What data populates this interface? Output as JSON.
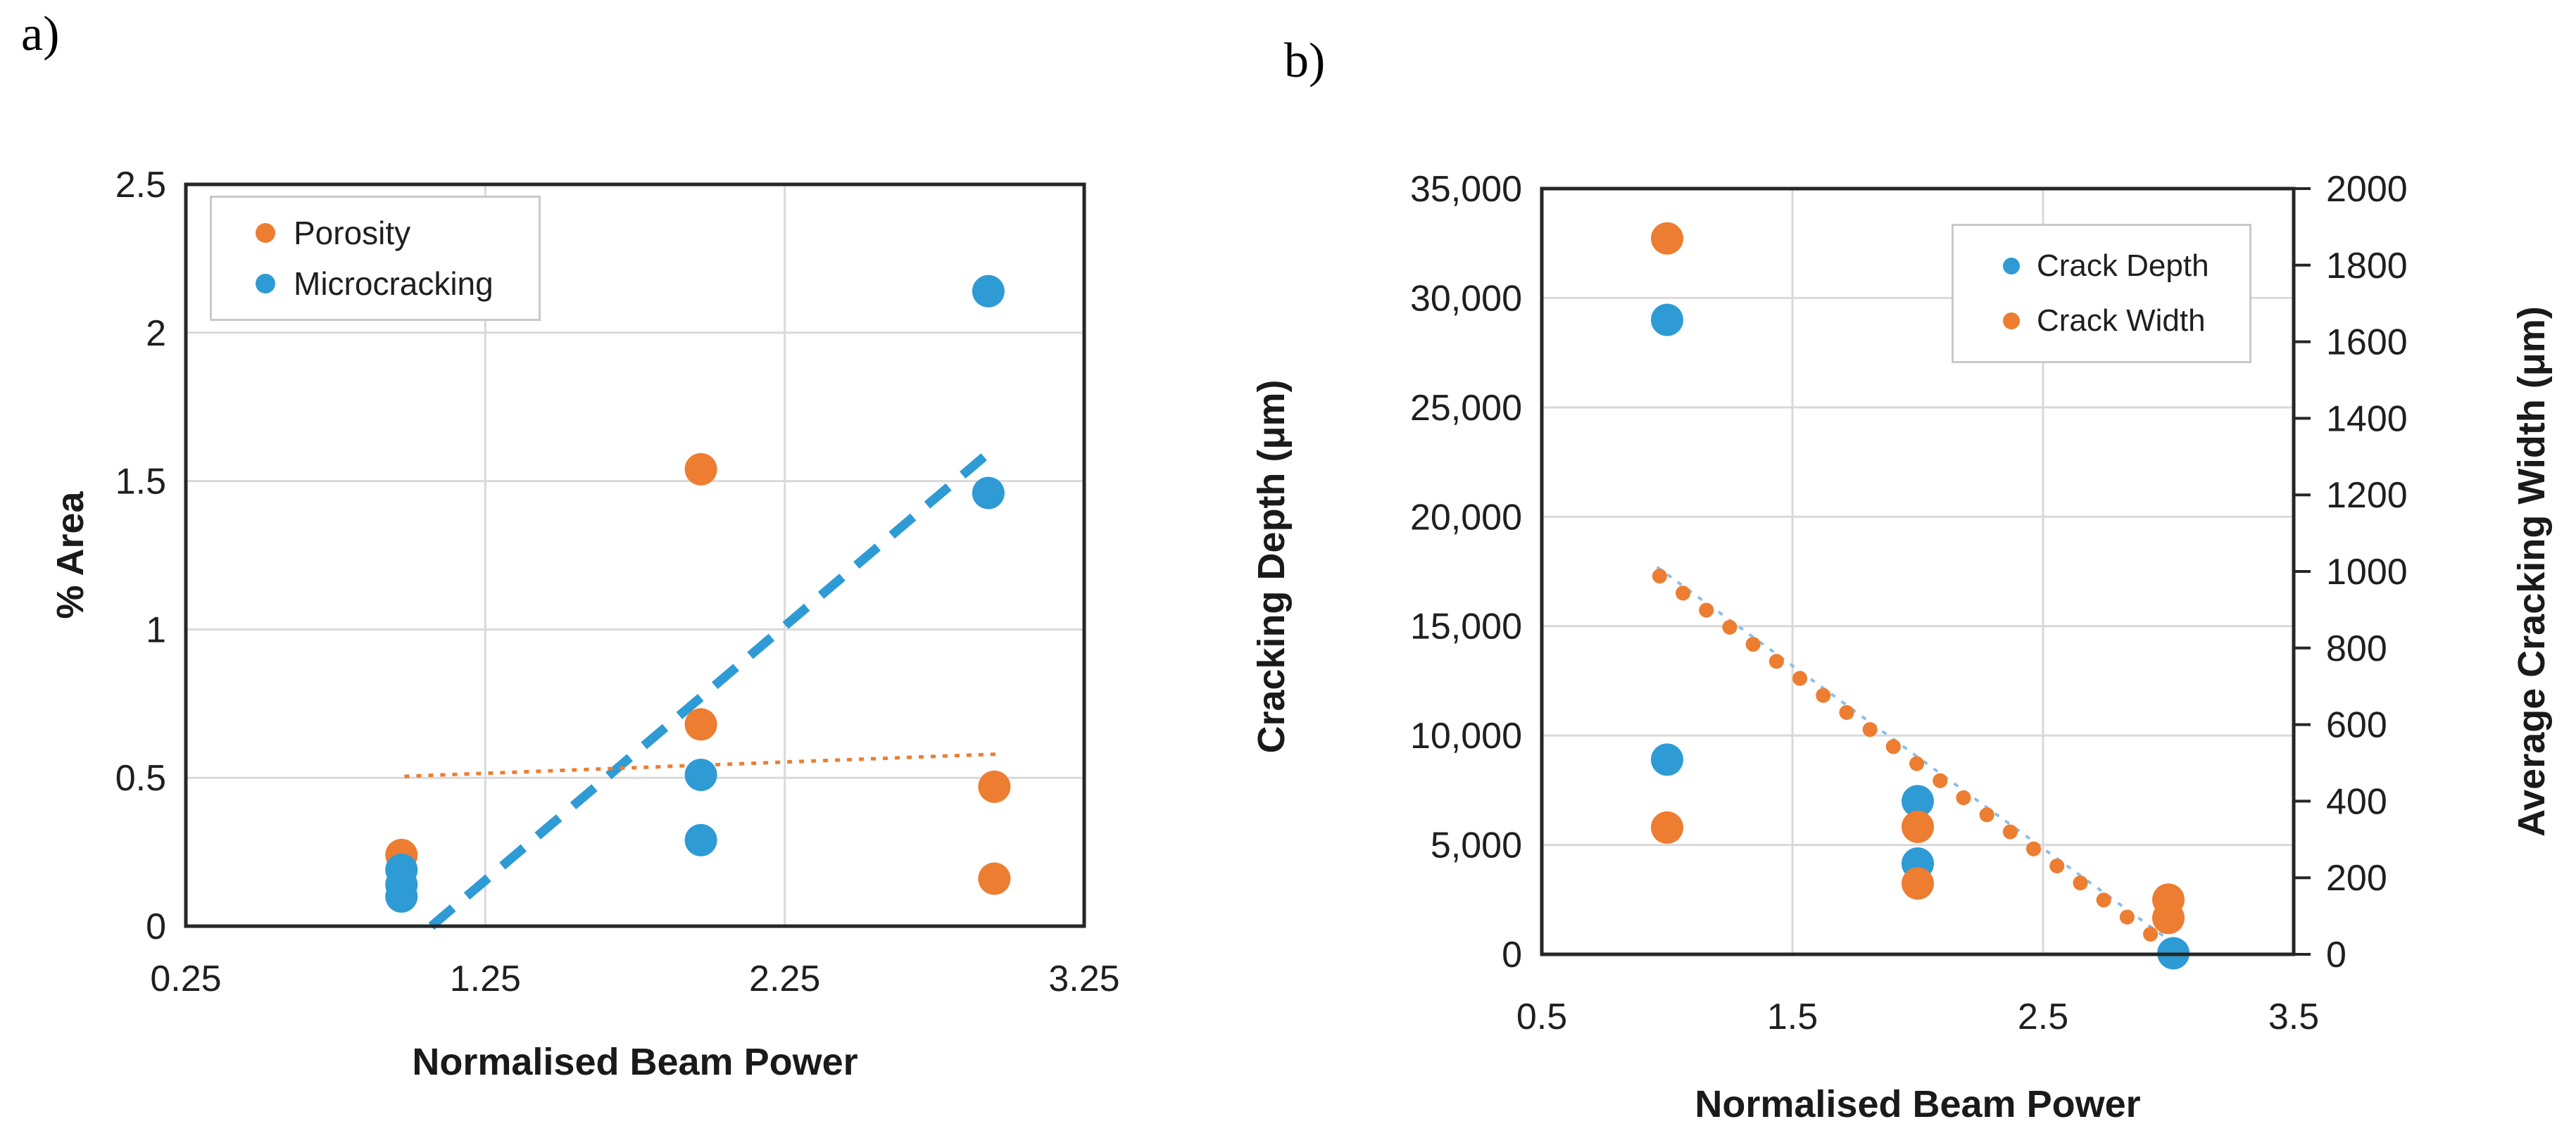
{
  "figure": {
    "background": "#FFFFFF",
    "grid_color": "#D9D9D9",
    "axis_color": "#262626",
    "tick_label_color": "#1F1F1F"
  },
  "chart_data": [
    {
      "panel_label": "a)",
      "type": "scatter",
      "xlabel": "Normalised Beam Power",
      "ylabel": "% Area",
      "xlim": [
        0.25,
        3.25
      ],
      "xticks": [
        0.25,
        1.25,
        2.25,
        3.25
      ],
      "xtick_labels": [
        "0.25",
        "1.25",
        "2.25",
        "3.25"
      ],
      "ylim": [
        0,
        2.5
      ],
      "yticks": [
        0,
        0.5,
        1,
        1.5,
        2,
        2.5
      ],
      "ytick_labels": [
        "0",
        "0.5",
        "1",
        "1.5",
        "2",
        "2.5"
      ],
      "grid": true,
      "legend_position": "top-left-inside",
      "series": [
        {
          "name": "Porosity",
          "color": "#ED7D31",
          "marker": "circle",
          "points": [
            [
              0.97,
              0.24
            ],
            [
              1.97,
              1.54
            ],
            [
              1.97,
              0.68
            ],
            [
              2.95,
              0.47
            ],
            [
              2.95,
              0.16
            ]
          ]
        },
        {
          "name": "Microcracking",
          "color": "#2E9BD5",
          "marker": "circle",
          "points": [
            [
              0.97,
              0.19
            ],
            [
              0.97,
              0.14
            ],
            [
              0.97,
              0.1
            ],
            [
              1.97,
              0.51
            ],
            [
              1.97,
              0.29
            ],
            [
              2.93,
              2.14
            ],
            [
              2.93,
              1.46
            ]
          ]
        }
      ],
      "trendlines": [
        {
          "name": "Microcracking trend",
          "color": "#2E9BD5",
          "style": "dashed",
          "x1": 1.07,
          "y1": 0,
          "x2": 2.96,
          "y2": 1.62
        },
        {
          "name": "Porosity trend",
          "color": "#ED7D31",
          "style": "dotted",
          "x1": 0.98,
          "y1": 0.505,
          "x2": 2.96,
          "y2": 0.58
        }
      ]
    },
    {
      "panel_label": "b)",
      "type": "scatter",
      "xlabel": "Normalised Beam Power",
      "ylabel_left": "Cracking Depth (μm)",
      "ylabel_right": "Average Cracking Width (μm)",
      "xlim": [
        0.5,
        3.5
      ],
      "xticks": [
        0.5,
        1.5,
        2.5,
        3.5
      ],
      "xtick_labels": [
        "0.5",
        "1.5",
        "2.5",
        "3.5"
      ],
      "ylim_left": [
        0,
        35000
      ],
      "yticks_left": [
        0,
        5000,
        10000,
        15000,
        20000,
        25000,
        30000,
        35000
      ],
      "ytick_labels_left": [
        "0",
        "5,000",
        "10,000",
        "15,000",
        "20,000",
        "25,000",
        "30,000",
        "35,000"
      ],
      "ylim_right": [
        0,
        2000
      ],
      "yticks_right": [
        0,
        200,
        400,
        600,
        800,
        1000,
        1200,
        1400,
        1600,
        1800,
        2000
      ],
      "ytick_labels_right": [
        "0",
        "200",
        "400",
        "600",
        "800",
        "1000",
        "1200",
        "1400",
        "1600",
        "1800",
        "2000"
      ],
      "grid": true,
      "legend_position": "top-right-inside",
      "series": [
        {
          "name": "Crack Depth",
          "axis": "left",
          "color": "#2E9BD5",
          "marker": "circle",
          "points": [
            [
              1.0,
              29000
            ],
            [
              1.0,
              8900
            ],
            [
              2.0,
              7000
            ],
            [
              2.0,
              4150
            ],
            [
              3.02,
              50
            ]
          ]
        },
        {
          "name": "Crack Width",
          "axis": "right",
          "color": "#ED7D31",
          "marker": "circle",
          "points": [
            [
              1.0,
              1870
            ],
            [
              1.0,
              331
            ],
            [
              2.0,
              333
            ],
            [
              2.0,
              185
            ],
            [
              3.0,
              143
            ],
            [
              3.0,
              95
            ]
          ]
        }
      ],
      "trendlines": [
        {
          "name": "Crack Depth trend",
          "axis": "left",
          "color": "#8CBEE8",
          "style": "dotted-thin",
          "x1": 0.96,
          "y1": 17700,
          "x2": 3.08,
          "y2": 0
        },
        {
          "name": "Crack Width trend",
          "axis": "right",
          "color": "#ED7D31",
          "style": "dotted-round",
          "x1": 0.97,
          "y1": 988,
          "x2": 3.02,
          "y2": 9
        }
      ]
    }
  ]
}
